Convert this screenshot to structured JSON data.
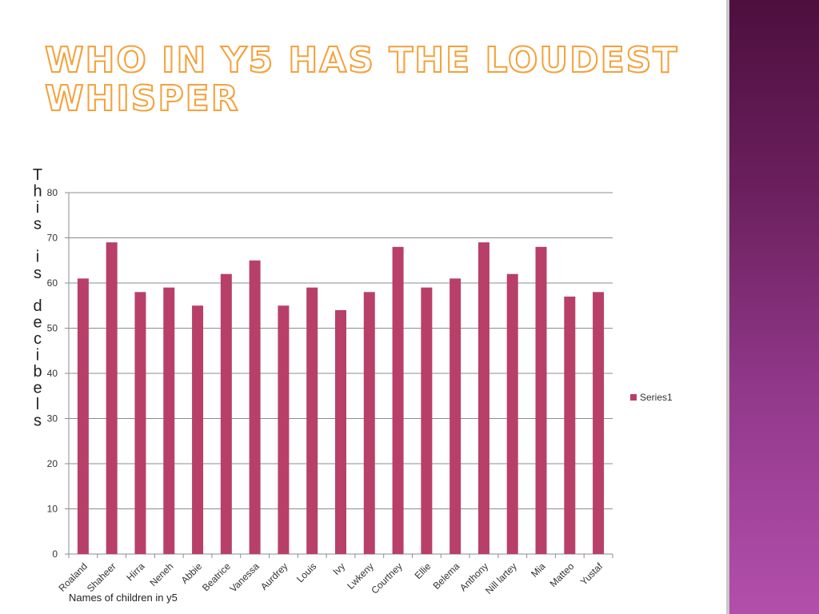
{
  "slide": {
    "title": "Who in Y5 has the loudest whisper"
  },
  "colors": {
    "bar": "#b84068",
    "title_outline": "#f4a13a",
    "gridline": "#8c8c8c",
    "side_band": "#7a2a6e"
  },
  "chart_data": {
    "type": "bar",
    "categories": [
      "Roaland",
      "Shaheer",
      "Hirra",
      "Neneh",
      "Abbie",
      "Beatrice",
      "Vanessa",
      "Aurdrey",
      "Louis",
      "Ivy",
      "Lwkeny",
      "Courtney",
      "Ellie",
      "Belema",
      "Anthony",
      "Nill lartey",
      "Mia",
      "Matteo",
      "Yustaf"
    ],
    "series": [
      {
        "name": "Series1",
        "values": [
          61,
          69,
          58,
          59,
          55,
          62,
          65,
          55,
          59,
          54,
          58,
          68,
          59,
          61,
          69,
          62,
          68,
          57,
          58
        ]
      }
    ],
    "ylabel": "This is decibels",
    "xlabel": "Names of children in y5",
    "ylim": [
      0,
      80
    ],
    "yticks": [
      0,
      10,
      20,
      30,
      40,
      50,
      60,
      70,
      80
    ],
    "grid": true,
    "legend": "right"
  }
}
